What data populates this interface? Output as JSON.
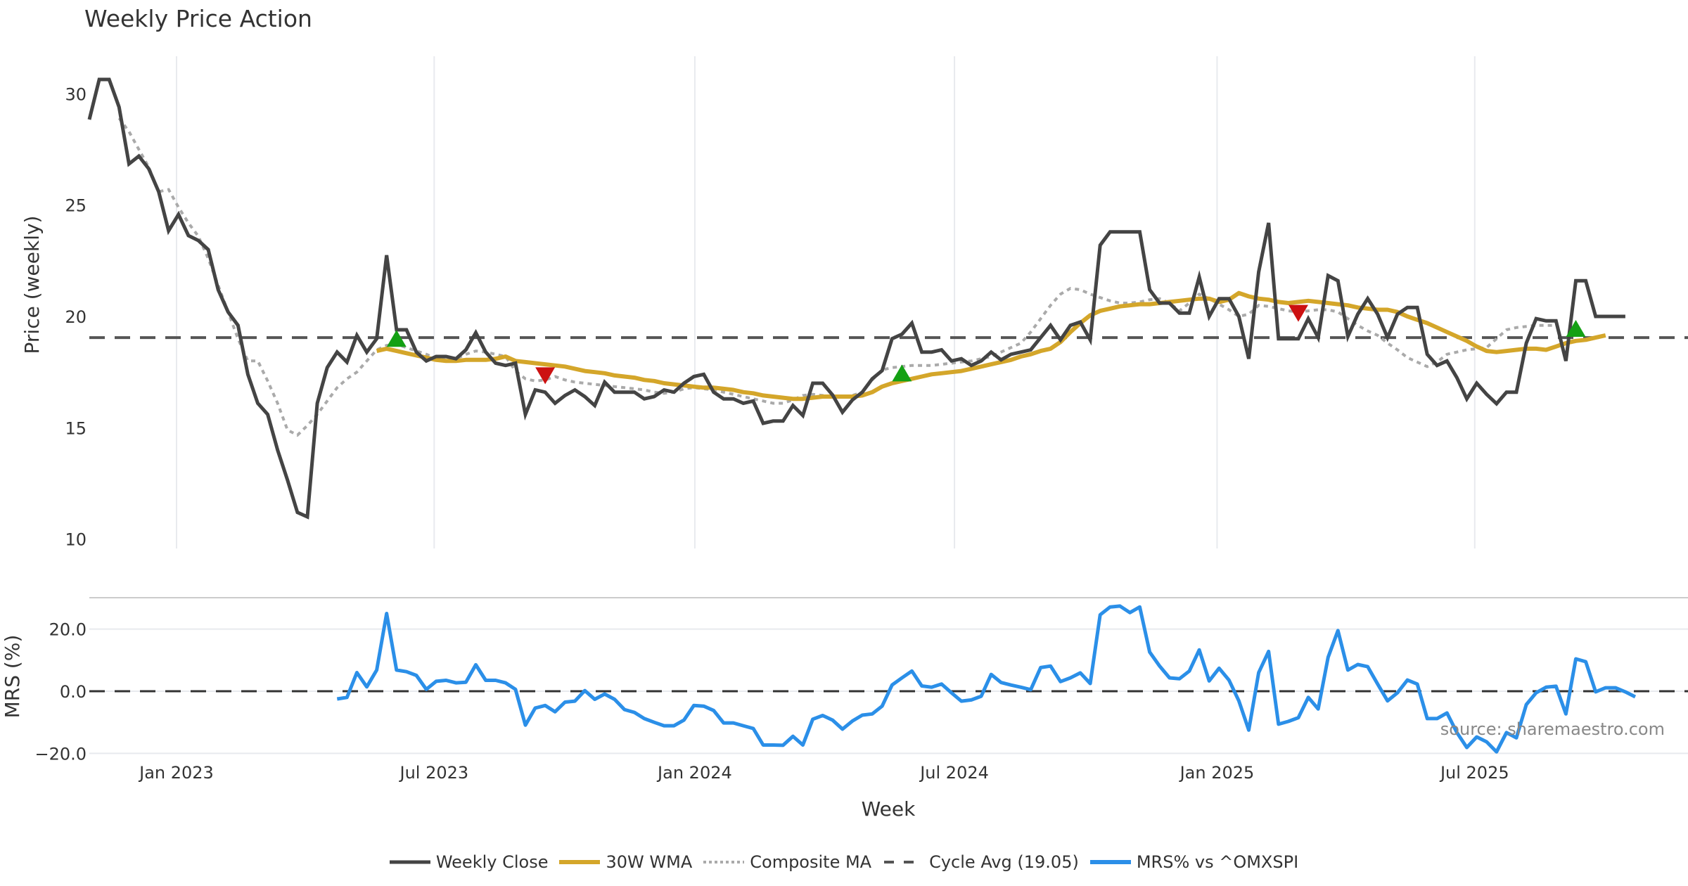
{
  "chart_data": {
    "type": "line",
    "title": "Weekly Price Action",
    "xlabel": "Week",
    "source_note": "source: sharemaestro.com",
    "x_ticks": [
      "Jan 2023",
      "Jul 2023",
      "Jan 2024",
      "Jul 2024",
      "Jan 2025",
      "Jul 2025"
    ],
    "x_start_week_offset": -8.8,
    "price_panel": {
      "ylabel": "Price (weekly)",
      "ylim": [
        10,
        31.5
      ],
      "y_ticks": [
        "10",
        "15",
        "20",
        "25",
        "30"
      ],
      "cycle_avg": 19.05,
      "weekly_close": [
        28.84,
        30.64,
        30.64,
        29.4,
        26.85,
        27.2,
        26.63,
        25.6,
        23.85,
        24.58,
        23.63,
        23.41,
        23.0,
        21.2,
        20.2,
        19.6,
        17.4,
        16.1,
        15.6,
        14.0,
        12.65,
        11.2,
        11.0,
        16.1,
        17.7,
        18.4,
        17.95,
        19.15,
        18.4,
        19.0,
        22.75,
        19.4,
        19.4,
        18.4,
        18.0,
        18.2,
        18.2,
        18.1,
        18.5,
        19.27,
        18.4,
        17.9,
        17.8,
        17.9,
        15.6,
        16.7,
        16.6,
        16.1,
        16.45,
        16.7,
        16.4,
        16.0,
        17.05,
        16.6,
        16.6,
        16.6,
        16.3,
        16.4,
        16.7,
        16.6,
        17.0,
        17.3,
        17.4,
        16.6,
        16.3,
        16.3,
        16.1,
        16.2,
        15.2,
        15.3,
        15.3,
        16.0,
        15.55,
        17.0,
        17.0,
        16.47,
        15.7,
        16.25,
        16.6,
        17.2,
        17.57,
        19.0,
        19.2,
        19.7,
        18.4,
        18.4,
        18.5,
        18.0,
        18.1,
        17.8,
        18.0,
        18.4,
        18.05,
        18.3,
        18.4,
        18.5,
        19.05,
        19.6,
        18.95,
        19.6,
        19.75,
        18.95,
        23.2,
        23.8,
        23.8,
        23.8,
        23.8,
        21.2,
        20.6,
        20.6,
        20.15,
        20.15,
        21.77,
        20.0,
        20.8,
        20.8,
        20.0,
        18.1,
        22.0,
        24.2,
        19.0,
        19.0,
        19.0,
        19.9,
        19.05,
        21.83,
        21.6,
        19.1,
        20.1,
        20.8,
        20.1,
        19.05,
        20.1,
        20.4,
        20.4,
        18.3,
        17.8,
        18.0,
        17.25,
        16.3,
        17.0,
        16.5,
        16.08,
        16.6,
        16.6,
        18.8,
        19.9,
        19.8,
        19.8,
        18.0,
        21.6,
        21.6,
        20.0,
        20.0,
        20.0,
        20.0
      ],
      "wma_30w_start_index": 29,
      "wma_30w": [
        18.45,
        18.55,
        18.45,
        18.35,
        18.25,
        18.15,
        18.05,
        18.0,
        18.0,
        18.05,
        18.05,
        18.05,
        18.1,
        18.2,
        18.0,
        17.95,
        17.9,
        17.85,
        17.8,
        17.75,
        17.65,
        17.55,
        17.5,
        17.45,
        17.35,
        17.3,
        17.25,
        17.15,
        17.1,
        17.0,
        16.95,
        16.9,
        16.85,
        16.8,
        16.8,
        16.75,
        16.7,
        16.6,
        16.55,
        16.45,
        16.4,
        16.35,
        16.3,
        16.3,
        16.35,
        16.4,
        16.4,
        16.4,
        16.4,
        16.45,
        16.6,
        16.85,
        17.0,
        17.1,
        17.2,
        17.3,
        17.4,
        17.45,
        17.5,
        17.55,
        17.65,
        17.75,
        17.85,
        17.95,
        18.05,
        18.2,
        18.3,
        18.45,
        18.55,
        18.85,
        19.3,
        19.7,
        20.05,
        20.25,
        20.35,
        20.45,
        20.5,
        20.55,
        20.55,
        20.6,
        20.65,
        20.7,
        20.75,
        20.8,
        20.8,
        20.65,
        20.75,
        21.05,
        20.9,
        20.8,
        20.75,
        20.65,
        20.6,
        20.65,
        20.7,
        20.65,
        20.6,
        20.55,
        20.5,
        20.4,
        20.35,
        20.3,
        20.3,
        20.2,
        20.0,
        19.85,
        19.7,
        19.5,
        19.3,
        19.1,
        18.9,
        18.65,
        18.45,
        18.4,
        18.45,
        18.5,
        18.55,
        18.55,
        18.5,
        18.65,
        18.8,
        18.9,
        18.95,
        19.05,
        19.15
      ],
      "composite_ma_start_index": 3,
      "composite_ma": [
        28.9,
        28.3,
        27.5,
        26.7,
        25.6,
        25.7,
        24.9,
        24.2,
        23.6,
        22.6,
        21.4,
        20.2,
        19.0,
        18.0,
        18.0,
        17.1,
        16.1,
        14.9,
        14.67,
        15.1,
        15.6,
        16.2,
        16.8,
        17.2,
        17.5,
        18.0,
        18.5,
        18.7,
        18.75,
        18.6,
        18.45,
        18.3,
        18.1,
        18.05,
        18.1,
        18.3,
        18.45,
        18.4,
        18.3,
        18.2,
        17.55,
        17.2,
        17.1,
        17.15,
        17.3,
        17.15,
        17.05,
        17.0,
        16.95,
        16.9,
        16.85,
        16.8,
        16.75,
        16.7,
        16.6,
        16.55,
        16.6,
        16.75,
        16.8,
        16.75,
        16.7,
        16.6,
        16.5,
        16.4,
        16.3,
        16.2,
        16.1,
        16.1,
        16.25,
        16.45,
        16.5,
        16.45,
        16.4,
        16.4,
        16.45,
        16.6,
        17.15,
        17.6,
        17.7,
        17.75,
        17.8,
        17.8,
        17.8,
        17.85,
        17.9,
        17.95,
        18.0,
        18.1,
        18.2,
        18.4,
        18.6,
        18.8,
        19.3,
        19.9,
        20.5,
        21.0,
        21.26,
        21.2,
        21.0,
        20.85,
        20.7,
        20.6,
        20.6,
        20.65,
        20.75,
        20.8,
        20.6,
        20.25,
        20.6,
        21.0,
        20.8,
        20.55,
        20.3,
        20.0,
        20.1,
        20.5,
        20.45,
        20.35,
        20.25,
        20.2,
        20.25,
        20.3,
        20.3,
        20.2,
        19.9,
        19.6,
        19.35,
        19.15,
        18.8,
        18.5,
        18.15,
        17.95,
        17.75,
        17.95,
        18.3,
        18.4,
        18.5,
        18.55,
        18.6,
        19.0,
        19.4,
        19.5,
        19.55,
        19.6,
        19.6,
        19.6
      ],
      "signals": [
        {
          "type": "buy",
          "index": 31,
          "value": 18.95
        },
        {
          "type": "sell",
          "index": 46,
          "value": 17.4
        },
        {
          "type": "buy",
          "index": 82,
          "value": 17.4
        },
        {
          "type": "sell",
          "index": 122,
          "value": 20.2
        },
        {
          "type": "buy",
          "index": 150,
          "value": 19.4
        }
      ]
    },
    "mrs_panel": {
      "ylabel": "MRS (%)",
      "ylim": [
        -21,
        29
      ],
      "y_ticks": [
        "−20.0",
        "0.0",
        "20.0"
      ],
      "zero_line": 0,
      "start_index": 25,
      "series_name": "MRS% vs ^OMXSPI",
      "values": [
        -2.5,
        -2.0,
        6.0,
        1.4,
        6.8,
        25.0,
        6.8,
        6.3,
        5.1,
        0.6,
        3.2,
        3.5,
        2.7,
        2.9,
        8.5,
        3.5,
        3.5,
        2.7,
        0.6,
        -10.9,
        -5.4,
        -4.6,
        -6.6,
        -3.5,
        -3.2,
        0.2,
        -2.6,
        -0.9,
        -2.6,
        -5.9,
        -6.8,
        -8.8,
        -10.0,
        -11.1,
        -11.1,
        -9.3,
        -4.6,
        -4.8,
        -6.2,
        -10.2,
        -10.2,
        -11.1,
        -12.0,
        -17.3,
        -17.3,
        -17.4,
        -14.5,
        -17.3,
        -9.0,
        -7.8,
        -9.3,
        -12.2,
        -9.6,
        -7.7,
        -7.3,
        -4.8,
        2.0,
        4.3,
        6.5,
        1.7,
        1.3,
        2.3,
        -0.5,
        -3.2,
        -2.8,
        -1.6,
        5.4,
        2.8,
        2.0,
        1.3,
        0.5,
        7.6,
        8.1,
        3.1,
        4.3,
        5.9,
        2.5,
        24.6,
        27.1,
        27.4,
        25.3,
        27.1,
        12.6,
        8.1,
        4.3,
        4.0,
        6.5,
        13.3,
        3.3,
        7.4,
        3.6,
        -3.1,
        -12.5,
        6.0,
        12.8,
        -10.6,
        -9.7,
        -8.5,
        -2.0,
        -5.7,
        10.9,
        19.5,
        6.8,
        8.6,
        7.9,
        2.3,
        -3.1,
        -0.5,
        3.6,
        2.3,
        -8.8,
        -8.8,
        -7.0,
        -13.3,
        -18.1,
        -14.7,
        -16.3,
        -19.5,
        -13.3,
        -15.0,
        -4.3,
        -0.5,
        1.3,
        1.6,
        -7.3,
        10.4,
        9.5,
        -0.2,
        1.1,
        1.1,
        -0.2,
        -1.8
      ]
    },
    "legend": [
      {
        "label": "Weekly Close",
        "style": "solid",
        "color": "#444444"
      },
      {
        "label": "30W WMA",
        "style": "solid",
        "color": "#D4A62A"
      },
      {
        "label": "Composite MA",
        "style": "dotted",
        "color": "#AAAAAA"
      },
      {
        "label": "Cycle Avg (19.05)",
        "style": "dashed",
        "color": "#555555"
      },
      {
        "label": "MRS% vs ^OMXSPI",
        "style": "solid",
        "color": "#2B8FE8"
      }
    ],
    "legend_position": "bottom-center",
    "colors": {
      "close": "#444444",
      "wma": "#D4A62A",
      "composite": "#AAAAAA",
      "cycle": "#555555",
      "mrs": "#2B8FE8",
      "buy": "#14A014",
      "sell": "#CC1111",
      "grid": "#E8EAEE"
    }
  }
}
